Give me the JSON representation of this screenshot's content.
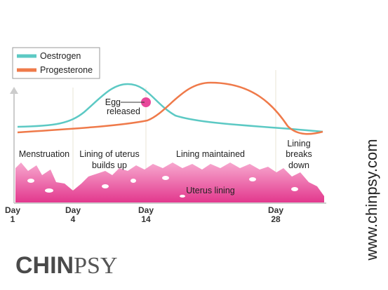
{
  "legend": {
    "items": [
      "Oestrogen",
      "Progesterone"
    ]
  },
  "annotation": [
    "Egg",
    "released"
  ],
  "phases": [
    {
      "lines": [
        "Menstruation"
      ]
    },
    {
      "lines": [
        "Lining of uterus",
        "builds up"
      ]
    },
    {
      "lines": [
        "Lining maintained"
      ]
    },
    {
      "lines": [
        "Lining",
        "breaks",
        "down"
      ]
    }
  ],
  "lining_label": "Uterus lining",
  "days": [
    {
      "word": "Day",
      "number": "1"
    },
    {
      "word": "Day",
      "number": "4"
    },
    {
      "word": "Day",
      "number": "14"
    },
    {
      "word": "Day",
      "number": "28"
    }
  ],
  "brand": {
    "bold": "CHIN",
    "light": "PSY"
  },
  "website": "www.chinpsy.com"
}
